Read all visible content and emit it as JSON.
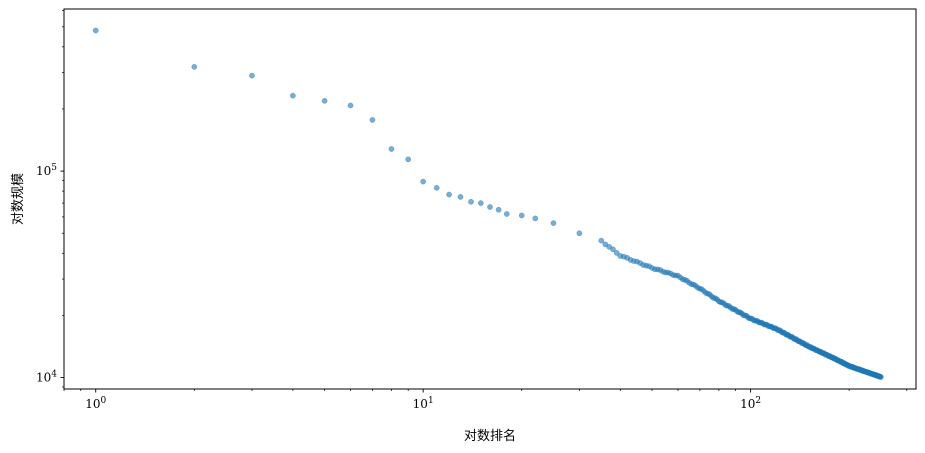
{
  "chart_data": {
    "type": "scatter",
    "title": "",
    "xlabel": "对数排名",
    "ylabel": "对数规模",
    "xscale": "log",
    "yscale": "log",
    "xlim": [
      0.8,
      320
    ],
    "ylim": [
      8800,
      610000
    ],
    "x_ticks": [
      {
        "base": "10",
        "exp": "0",
        "value": 1
      },
      {
        "base": "10",
        "exp": "1",
        "value": 10
      },
      {
        "base": "10",
        "exp": "2",
        "value": 100
      }
    ],
    "y_ticks": [
      {
        "base": "10",
        "exp": "4",
        "value": 10000
      },
      {
        "base": "10",
        "exp": "5",
        "value": 100000
      }
    ],
    "grid": false,
    "legend": "none",
    "marker_color": "#1f77b4",
    "marker_alpha": 0.6,
    "rank_range": [
      1,
      250
    ],
    "top_points": [
      {
        "x": 1,
        "y": 480000
      },
      {
        "x": 2,
        "y": 320000
      },
      {
        "x": 3,
        "y": 290000
      },
      {
        "x": 4,
        "y": 232000
      },
      {
        "x": 5,
        "y": 219000
      },
      {
        "x": 6,
        "y": 208000
      },
      {
        "x": 7,
        "y": 177000
      },
      {
        "x": 8,
        "y": 128000
      },
      {
        "x": 9,
        "y": 114000
      },
      {
        "x": 10,
        "y": 89000
      },
      {
        "x": 11,
        "y": 83000
      },
      {
        "x": 12,
        "y": 77000
      },
      {
        "x": 13,
        "y": 75000
      },
      {
        "x": 14,
        "y": 71000
      },
      {
        "x": 15,
        "y": 70000
      },
      {
        "x": 16,
        "y": 67000
      },
      {
        "x": 17,
        "y": 65000
      },
      {
        "x": 18,
        "y": 62000
      },
      {
        "x": 20,
        "y": 61000
      },
      {
        "x": 22,
        "y": 59000
      },
      {
        "x": 25,
        "y": 56000
      },
      {
        "x": 30,
        "y": 50000
      },
      {
        "x": 35,
        "y": 46000
      }
    ],
    "tail_anchors": [
      {
        "x": 35,
        "y": 46000
      },
      {
        "x": 40,
        "y": 39000
      },
      {
        "x": 50,
        "y": 34000
      },
      {
        "x": 60,
        "y": 31000
      },
      {
        "x": 70,
        "y": 27000
      },
      {
        "x": 80,
        "y": 23500
      },
      {
        "x": 100,
        "y": 19300
      },
      {
        "x": 120,
        "y": 17200
      },
      {
        "x": 150,
        "y": 14200
      },
      {
        "x": 180,
        "y": 12400
      },
      {
        "x": 200,
        "y": 11400
      },
      {
        "x": 250,
        "y": 10100
      }
    ]
  }
}
